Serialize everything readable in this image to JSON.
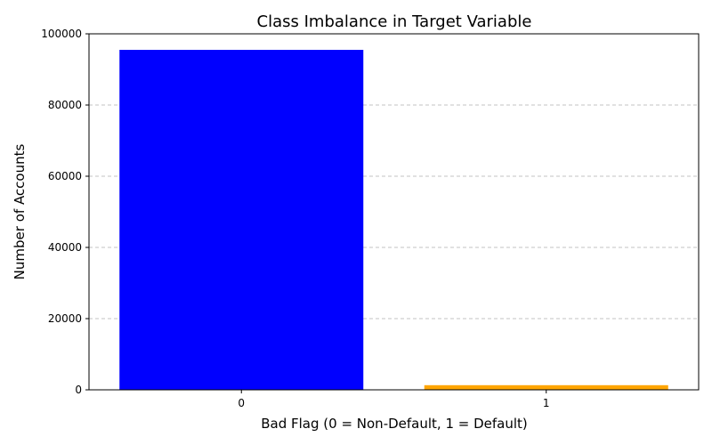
{
  "chart_data": {
    "type": "bar",
    "title": "Class Imbalance in Target Variable",
    "xlabel": "Bad Flag (0 = Non-Default, 1 = Default)",
    "ylabel": "Number of Accounts",
    "categories": [
      "0",
      "1"
    ],
    "values": [
      95500,
      1300
    ],
    "colors": [
      "#0000ff",
      "#ffa500"
    ],
    "ylim": [
      0,
      100000
    ],
    "yticks": [
      0,
      20000,
      40000,
      60000,
      80000,
      100000
    ],
    "ytick_labels": [
      "0",
      "20000",
      "40000",
      "60000",
      "80000",
      "100000"
    ],
    "grid": "y-axis dashed"
  }
}
